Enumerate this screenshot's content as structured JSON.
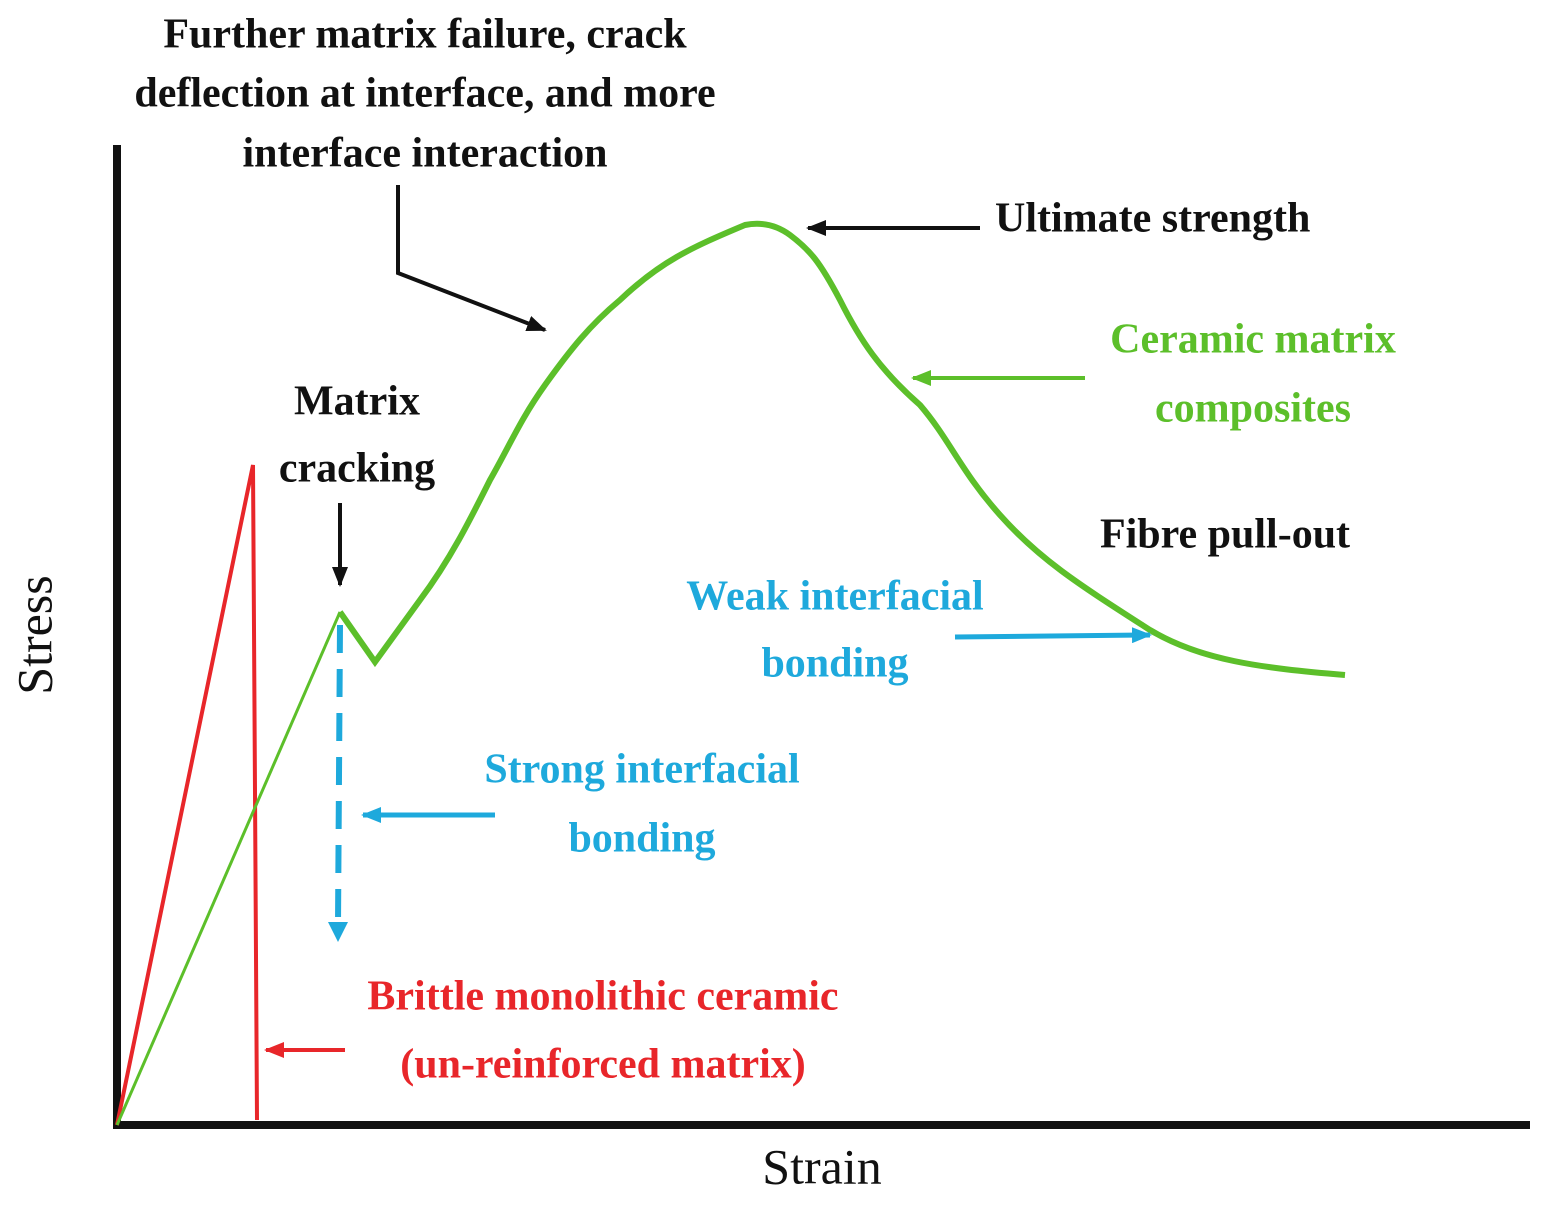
{
  "axes": {
    "y_label": "Stress",
    "x_label": "Strain"
  },
  "annotations": {
    "further_failure": [
      "Further matrix failure, crack",
      "deflection at interface, and more",
      "interface interaction"
    ],
    "ultimate_strength": "Ultimate strength",
    "ceramic_matrix_composites": [
      "Ceramic matrix",
      "composites"
    ],
    "matrix_cracking": [
      "Matrix",
      "cracking"
    ],
    "fibre_pull_out": "Fibre pull-out",
    "weak_bonding": [
      "Weak interfacial",
      "bonding"
    ],
    "strong_bonding": [
      "Strong interfacial",
      "bonding"
    ],
    "brittle_ceramic": [
      "Brittle monolithic ceramic",
      "(un-reinforced matrix)"
    ]
  }
}
